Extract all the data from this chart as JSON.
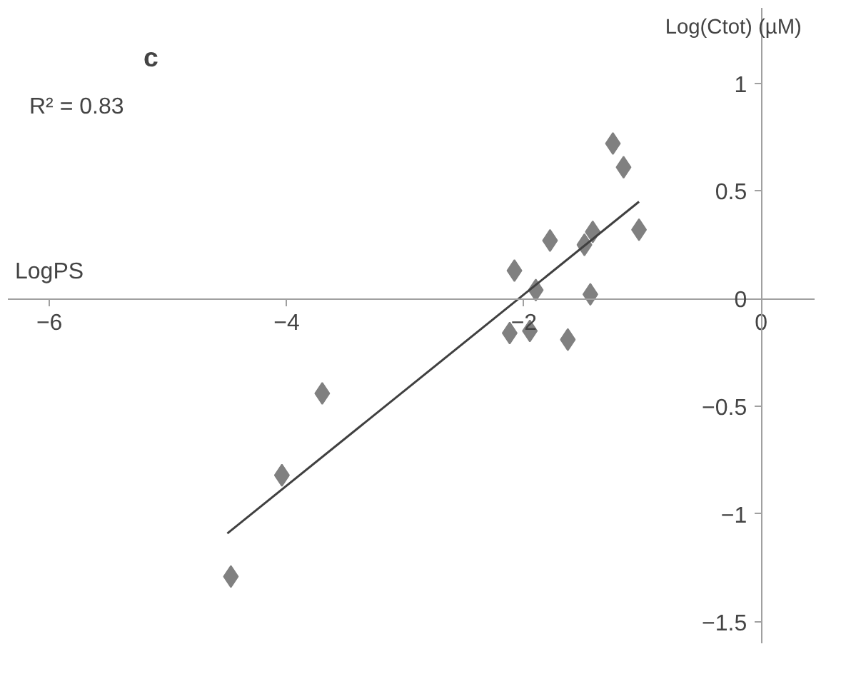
{
  "chart_data": {
    "type": "scatter",
    "title": "c",
    "xlabel": "LogPS",
    "ylabel": "Log(Ctot)  (µM)",
    "annotations": [
      "R² = 0.83"
    ],
    "xlim": [
      -6.35,
      0.45
    ],
    "ylim": [
      -1.6,
      1.35
    ],
    "xticks": [
      -6,
      -4,
      -2,
      0
    ],
    "yticks": [
      -1.5,
      -1,
      -0.5,
      0,
      0.5,
      1
    ],
    "grid": false,
    "marker": "diamond",
    "series": [
      {
        "color": "#808080",
        "x": [
          -4.47,
          -4.04,
          -3.7,
          -1.25,
          -1.16,
          -1.03,
          -1.78,
          -1.42,
          -1.49,
          -2.08,
          -1.9,
          -1.44,
          -2.12,
          -1.95,
          -1.63
        ],
        "values": [
          -1.29,
          -0.82,
          -0.44,
          0.72,
          0.61,
          0.32,
          0.27,
          0.31,
          0.25,
          0.13,
          0.04,
          0.02,
          -0.16,
          -0.15,
          -0.19
        ]
      },
      {
        "type": "line",
        "color": "#404040",
        "x": [
          -4.5,
          -1.03
        ],
        "values": [
          -1.09,
          0.45
        ],
        "marker": "none"
      }
    ]
  }
}
